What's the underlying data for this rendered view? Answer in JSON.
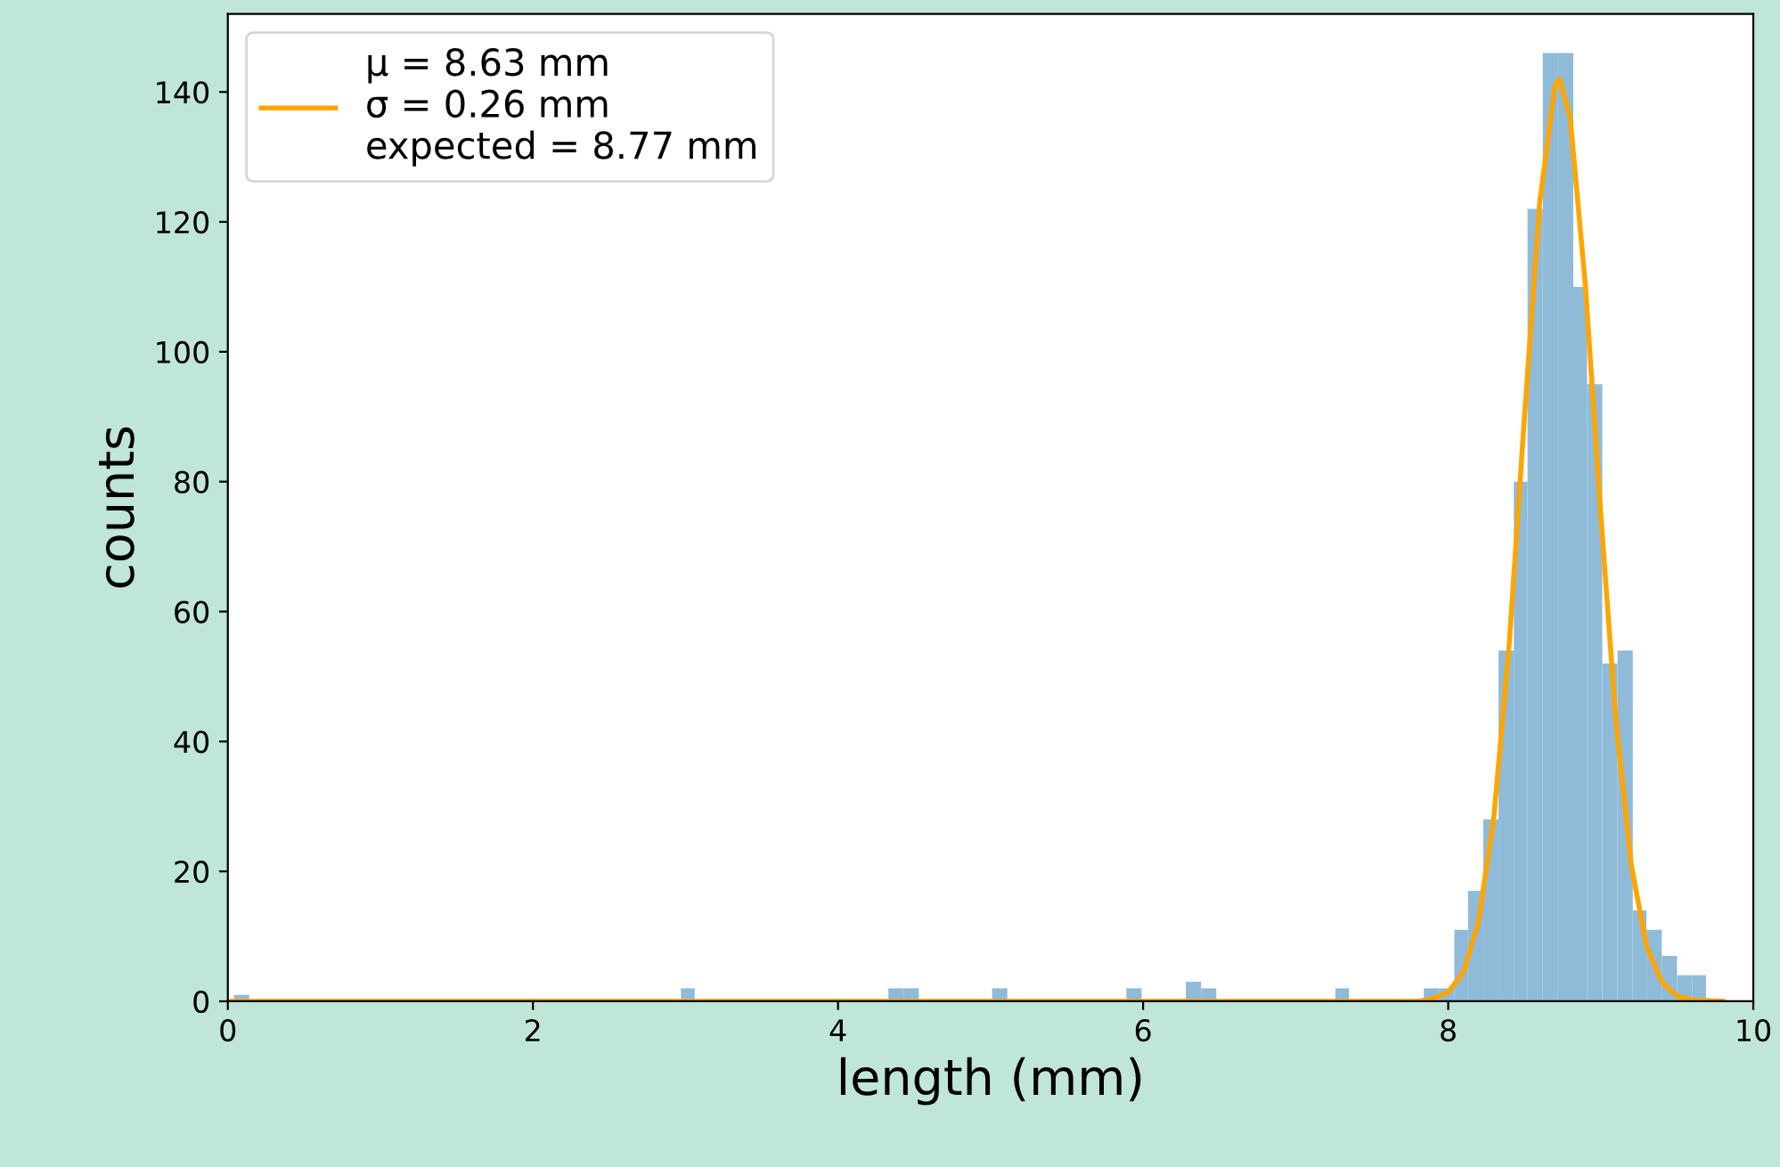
{
  "chart_data": {
    "type": "histogram",
    "xlabel": "length (mm)",
    "ylabel": "counts",
    "xlim": [
      0,
      10
    ],
    "xticks": [
      0,
      2,
      4,
      6,
      8,
      10
    ],
    "ylim": [
      0,
      152
    ],
    "yticks": [
      0,
      20,
      40,
      60,
      80,
      100,
      120,
      140
    ],
    "grid": false,
    "legend": "top left",
    "series": [
      {
        "color": "#8fbbd9",
        "bins": [
          0.04,
          0.14
        ],
        "values": [
          1
        ]
      },
      {
        "color": "#8fbbd9",
        "bins": [
          2.97,
          3.06
        ],
        "values": [
          2
        ]
      },
      {
        "color": "#8fbbd9",
        "bins": [
          4.33,
          4.43,
          4.53
        ],
        "values": [
          2,
          2
        ]
      },
      {
        "color": "#8fbbd9",
        "bins": [
          5.01,
          5.11
        ],
        "values": [
          2
        ]
      },
      {
        "color": "#8fbbd9",
        "bins": [
          5.89,
          5.99
        ],
        "values": [
          2
        ]
      },
      {
        "color": "#8fbbd9",
        "bins": [
          6.28,
          6.38,
          6.48
        ],
        "values": [
          3,
          2
        ]
      },
      {
        "color": "#8fbbd9",
        "bins": [
          7.26,
          7.35
        ],
        "values": [
          2
        ]
      },
      {
        "color": "#8fbbd9",
        "bins": [
          7.84,
          7.94,
          8.04,
          8.13,
          8.23,
          8.33,
          8.43,
          8.52,
          8.62,
          8.72,
          8.82,
          8.91,
          9.01,
          9.11,
          9.21,
          9.3,
          9.4,
          9.5,
          9.6,
          9.69
        ],
        "values": [
          2,
          2,
          11,
          17,
          28,
          54,
          80,
          122,
          146,
          146,
          110,
          95,
          52,
          54,
          14,
          11,
          7,
          4,
          4
        ]
      },
      {
        "type": "line",
        "name": "μ = 8.63 mm\nσ = 0.26 mm\nexpected = 8.77 mm",
        "color": "#ffa500",
        "x": [
          0,
          7.8,
          7.9,
          8.0,
          8.1,
          8.2,
          8.3,
          8.4,
          8.5,
          8.6,
          8.7,
          8.73,
          8.8,
          8.9,
          9.0,
          9.1,
          9.2,
          9.3,
          9.4,
          9.5,
          9.6,
          9.8
        ],
        "values": [
          0,
          0,
          0.4,
          1.4,
          4.5,
          12.4,
          28.5,
          55,
          90,
          123,
          141,
          142,
          136,
          110,
          75,
          43,
          21,
          8.5,
          3,
          0.8,
          0.2,
          0
        ]
      }
    ]
  }
}
